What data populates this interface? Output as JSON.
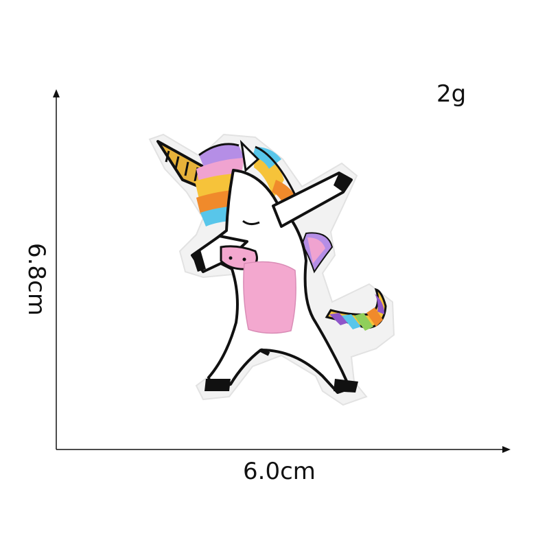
{
  "product": {
    "weight_label": "2g",
    "width_label": "6.0cm",
    "height_label": "6.8cm",
    "subject": "unicorn-patch"
  },
  "colors": {
    "ink": "#111111",
    "felt_border": "#f2f2f2",
    "body": "#ffffff",
    "belly": "#f3a8cf",
    "horn": "#e7b23a",
    "mane": [
      "#b58ee6",
      "#f0a3d0",
      "#f6c33a",
      "#f08a2b",
      "#58c6ea",
      "#8fcf5b",
      "#8f56c9"
    ]
  }
}
